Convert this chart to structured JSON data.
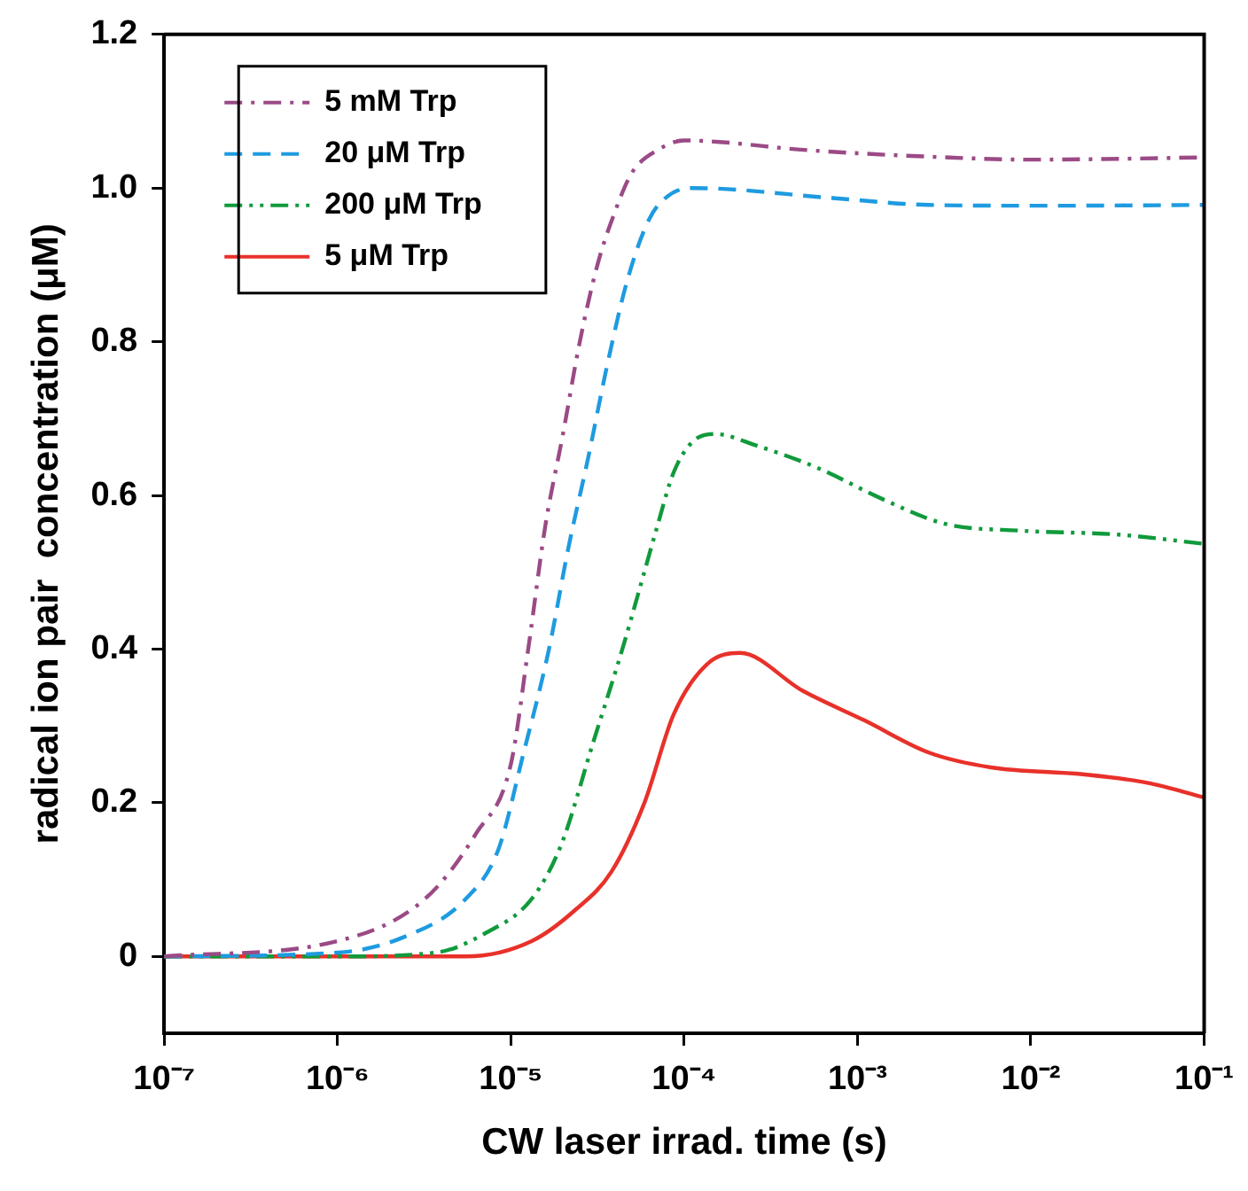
{
  "chart_data": {
    "type": "line",
    "xlabel": "CW laser irrad. time (s)",
    "ylabel": "radical ion pair  concentration (μM)",
    "log": "x",
    "xlim": [
      1e-07,
      0.1
    ],
    "ylim": [
      -0.1,
      1.2
    ],
    "xticks": [
      {
        "value": 1e-07,
        "label": "10⁻⁷"
      },
      {
        "value": 1e-06,
        "label": "10⁻⁶"
      },
      {
        "value": 1e-05,
        "label": "10⁻⁵"
      },
      {
        "value": 0.0001,
        "label": "10⁻⁴"
      },
      {
        "value": 0.001,
        "label": "10⁻³"
      },
      {
        "value": 0.01,
        "label": "10⁻²"
      },
      {
        "value": 0.1,
        "label": "10⁻¹"
      }
    ],
    "yticks": [
      0,
      0.2,
      0.4,
      0.6,
      0.8,
      {
        "value": 1,
        "label": "1.0"
      },
      1.2
    ],
    "grid": false,
    "legend": "top left",
    "marker": "none",
    "series": [
      {
        "name": "5 mM Trp",
        "color": "#9b4a86",
        "line_style": "dashdot",
        "x": [
          1e-07,
          1e-06,
          3.2e-06,
          6.3e-06,
          1e-05,
          1.26e-05,
          1.58e-05,
          2e-05,
          2.5e-05,
          3.16e-05,
          4e-05,
          5e-05,
          7.1e-05,
          0.0001,
          0.00016,
          0.00047,
          0.0032,
          0.01,
          0.032,
          0.1
        ],
        "values": [
          0,
          0.02,
          0.075,
          0.16,
          0.25,
          0.4,
          0.56,
          0.68,
          0.8,
          0.9,
          0.97,
          1.02,
          1.05,
          1.062,
          1.06,
          1.05,
          1.04,
          1.037,
          1.038,
          1.04
        ]
      },
      {
        "name": "20 μM Trp",
        "color": "#1e9be0",
        "line_style": "dashed",
        "x": [
          1e-07,
          1e-06,
          2.4e-06,
          5.5e-06,
          8.5e-06,
          1.17e-05,
          1.66e-05,
          2.14e-05,
          2.8e-05,
          3.6e-05,
          4.7e-05,
          6.3e-05,
          8.1e-05,
          0.000112,
          0.00072,
          0.0026,
          0.0126,
          0.1
        ],
        "values": [
          0,
          0.005,
          0.025,
          0.075,
          0.14,
          0.26,
          0.4,
          0.53,
          0.65,
          0.77,
          0.88,
          0.96,
          0.99,
          1.0,
          0.987,
          0.978,
          0.977,
          0.978
        ]
      },
      {
        "name": "200 μM Trp",
        "color": "#119a3c",
        "line_style": "dashdotdot",
        "x": [
          1e-07,
          1e-06,
          3.7e-06,
          7.1e-06,
          1.32e-05,
          1.95e-05,
          3e-05,
          4.4e-05,
          5.4e-05,
          6.9e-05,
          8.7e-05,
          0.000112,
          0.00015,
          0.00026,
          0.0006,
          0.0014,
          0.0032,
          0.0089,
          0.032,
          0.1
        ],
        "values": [
          0,
          0,
          0.005,
          0.03,
          0.075,
          0.145,
          0.28,
          0.4,
          0.47,
          0.555,
          0.63,
          0.67,
          0.68,
          0.665,
          0.635,
          0.595,
          0.563,
          0.554,
          0.549,
          0.537
        ]
      },
      {
        "name": "5 μM Trp",
        "color": "#e8312a",
        "line_style": "solid",
        "x": [
          1e-07,
          1e-06,
          5.5e-06,
          1.32e-05,
          2.34e-05,
          3.8e-05,
          5.9e-05,
          8.7e-05,
          0.000135,
          0.00021,
          0.00048,
          0.0011,
          0.0026,
          0.0059,
          0.02,
          0.047,
          0.1
        ],
        "values": [
          0,
          0,
          0,
          0.02,
          0.06,
          0.11,
          0.2,
          0.315,
          0.38,
          0.395,
          0.346,
          0.307,
          0.265,
          0.246,
          0.237,
          0.226,
          0.207
        ]
      }
    ]
  }
}
